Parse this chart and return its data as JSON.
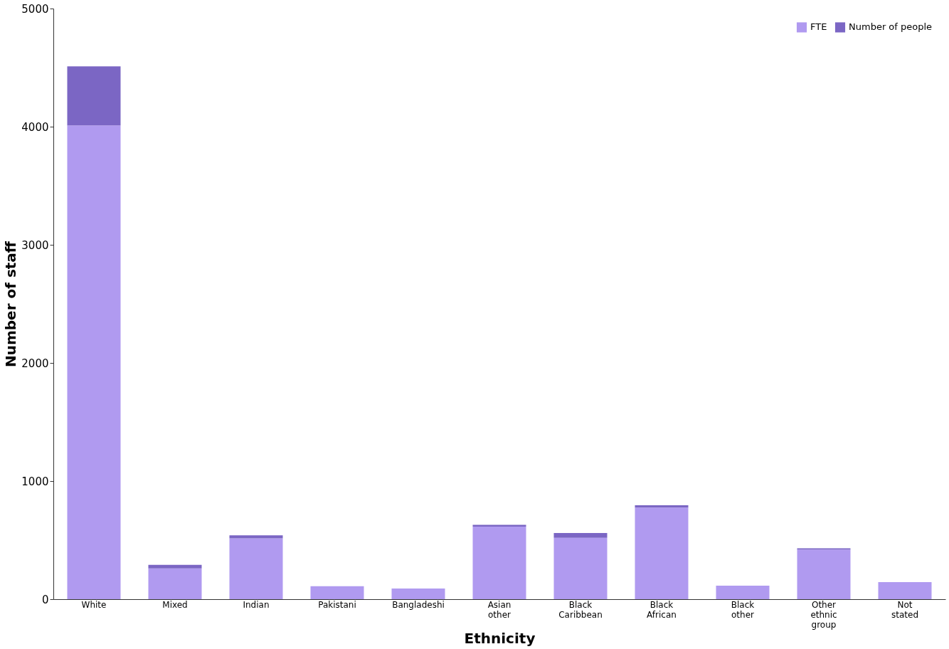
{
  "chart_data": {
    "type": "bar",
    "stacked": true,
    "xlabel": "Ethnicity",
    "ylabel": "Number of staff",
    "categories": [
      "White",
      "Mixed",
      "Indian",
      "Pakistani",
      "Bangladeshi",
      "Asian other",
      "Black Caribbean",
      "Black African",
      "Black other",
      "Other ethnic group",
      "Not stated"
    ],
    "series": [
      {
        "name": "FTE",
        "color": "#b09af0",
        "values": [
          4010,
          260,
          515,
          110,
          90,
          615,
          520,
          775,
          115,
          420,
          145
        ]
      },
      {
        "name": "Number of people",
        "color": "#7b66c4",
        "values": [
          500,
          30,
          25,
          0,
          0,
          15,
          40,
          20,
          0,
          10,
          0
        ]
      }
    ],
    "ylim": [
      0,
      5000
    ],
    "yticks": [
      0,
      1000,
      2000,
      3000,
      4000,
      5000
    ],
    "grid": false,
    "legend": "top right"
  }
}
